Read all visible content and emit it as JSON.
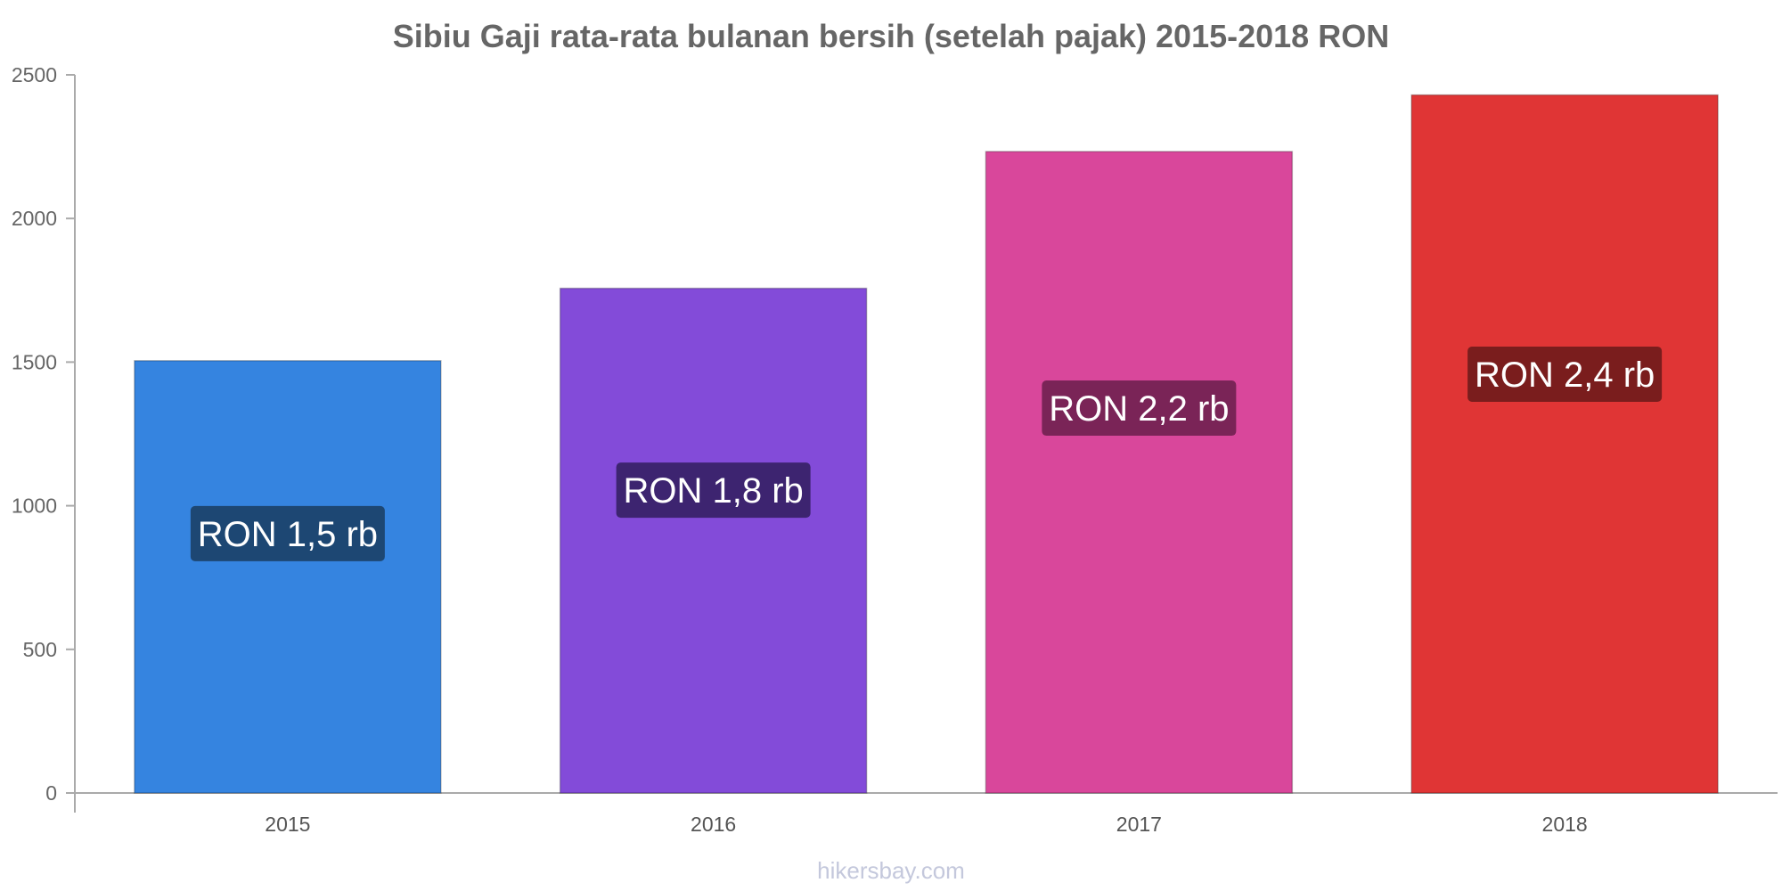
{
  "chart_data": {
    "type": "bar",
    "title": "Sibiu Gaji rata-rata bulanan bersih (setelah pajak) 2015-2018 RON",
    "categories": [
      "2015",
      "2016",
      "2017",
      "2018"
    ],
    "values": [
      1505,
      1757,
      2233,
      2430
    ],
    "data_labels": [
      "RON 1,5 rb",
      "RON 1,8 rb",
      "RON 2,2 rb",
      "RON 2,4 rb"
    ],
    "colors": [
      "#3584e0",
      "#834bd9",
      "#d9479b",
      "#e03535"
    ],
    "label_bg_colors": [
      "#1d4773",
      "#3d2470",
      "#7a2457",
      "#7a1d1d"
    ],
    "yticks": [
      0,
      500,
      1000,
      1500,
      2000,
      2500
    ],
    "ylim": [
      0,
      2500
    ],
    "grid": false,
    "legend": "none",
    "watermark": "hikersbay.com"
  }
}
